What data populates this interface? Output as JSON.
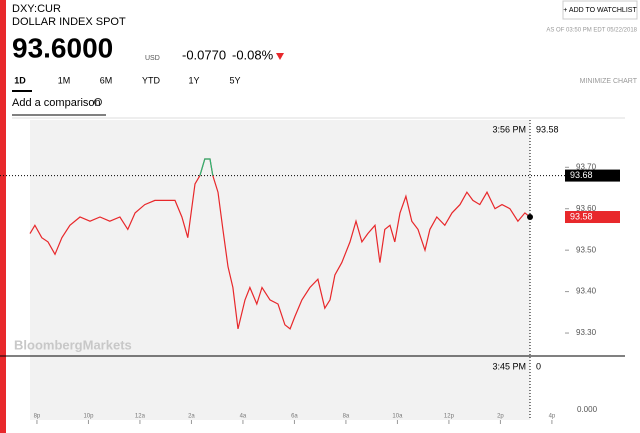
{
  "header": {
    "ticker": "DXY:CUR",
    "name": "DOLLAR INDEX SPOT",
    "price": "93.6000",
    "currency": "USD",
    "change": "-0.0770",
    "change_pct": "-0.08%",
    "watchlist": "+ ADD TO WATCHLIST",
    "as_of": "AS OF 03:50 PM EDT 05/22/2018"
  },
  "tabs": [
    "1D",
    "1M",
    "6M",
    "YTD",
    "1Y",
    "5Y"
  ],
  "minimize": "MINIMIZE CHART",
  "comparison": "Add a comparison",
  "watermark": "BloombergMarkets",
  "chart_data": {
    "type": "line",
    "x": [
      -0.27,
      -0.08,
      0.19,
      0.43,
      0.7,
      0.97,
      1.28,
      1.67,
      2.06,
      2.45,
      2.83,
      3.22,
      3.53,
      3.81,
      4.19,
      4.58,
      4.97,
      5.36,
      5.63,
      5.86,
      6.14,
      6.33,
      6.52,
      6.72,
      6.83,
      7.03,
      7.22,
      7.42,
      7.61,
      7.81,
      8.08,
      8.27,
      8.54,
      8.74,
      9.05,
      9.36,
      9.63,
      9.83,
      10.02,
      10.29,
      10.6,
      10.91,
      11.18,
      11.38,
      11.57,
      11.84,
      12.16,
      12.39,
      12.62,
      12.85,
      13.13,
      13.32,
      13.51,
      13.71,
      13.9,
      14.1,
      14.33,
      14.56,
      14.8,
      15.07,
      15.26,
      15.53,
      15.84,
      16.12,
      16.43,
      16.7,
      16.93,
      17.2,
      17.48,
      17.79,
      18.06,
      18.37,
      18.68,
      18.95,
      19.15
    ],
    "series": [
      {
        "name": "DXY:CUR",
        "color": "#e8282b",
        "values": [
          93.54,
          93.56,
          93.53,
          93.52,
          93.49,
          93.53,
          93.56,
          93.58,
          93.57,
          93.58,
          93.57,
          93.58,
          93.55,
          93.59,
          93.61,
          93.62,
          93.62,
          93.62,
          93.58,
          93.53,
          93.66,
          93.68,
          93.72,
          93.72,
          93.68,
          93.64,
          93.55,
          93.46,
          93.41,
          93.31,
          93.38,
          93.41,
          93.37,
          93.41,
          93.38,
          93.37,
          93.32,
          93.31,
          93.34,
          93.38,
          93.41,
          93.43,
          93.36,
          93.38,
          93.44,
          93.47,
          93.52,
          93.57,
          93.52,
          93.54,
          93.56,
          93.47,
          93.55,
          93.56,
          93.52,
          93.59,
          93.63,
          93.57,
          93.55,
          93.5,
          93.55,
          93.58,
          93.56,
          93.59,
          93.61,
          93.64,
          93.62,
          93.61,
          93.64,
          93.6,
          93.61,
          93.6,
          93.57,
          93.59,
          93.58
        ]
      }
    ],
    "above_color": "#2bb673",
    "previous_close": {
      "value": 93.68,
      "label": "93.68"
    },
    "last": {
      "value": 93.58,
      "label": "93.58"
    },
    "cursor_top": {
      "time": "3:56 PM",
      "value": "93.58"
    },
    "cursor_bottom": {
      "time": "3:45 PM",
      "value": "0"
    },
    "volume_label": "0.000",
    "xlim": [
      -0.27,
      22.8
    ],
    "xticks": [
      {
        "value": 0,
        "label": "8p"
      },
      {
        "value": 2,
        "label": "10p"
      },
      {
        "value": 4,
        "label": "12a"
      },
      {
        "value": 6,
        "label": "2a"
      },
      {
        "value": 8,
        "label": "4a"
      },
      {
        "value": 10,
        "label": "6a"
      },
      {
        "value": 12,
        "label": "8a"
      },
      {
        "value": 14,
        "label": "10a"
      },
      {
        "value": 16,
        "label": "12p"
      },
      {
        "value": 18,
        "label": "2p"
      },
      {
        "value": 20,
        "label": "4p"
      }
    ],
    "ylim": [
      93.247,
      93.79
    ],
    "yticks": [
      {
        "value": 93.3,
        "label": "93.30"
      },
      {
        "value": 93.4,
        "label": "93.40"
      },
      {
        "value": 93.5,
        "label": "93.50"
      },
      {
        "value": 93.6,
        "label": "93.60"
      },
      {
        "value": 93.7,
        "label": "93.70"
      }
    ]
  }
}
